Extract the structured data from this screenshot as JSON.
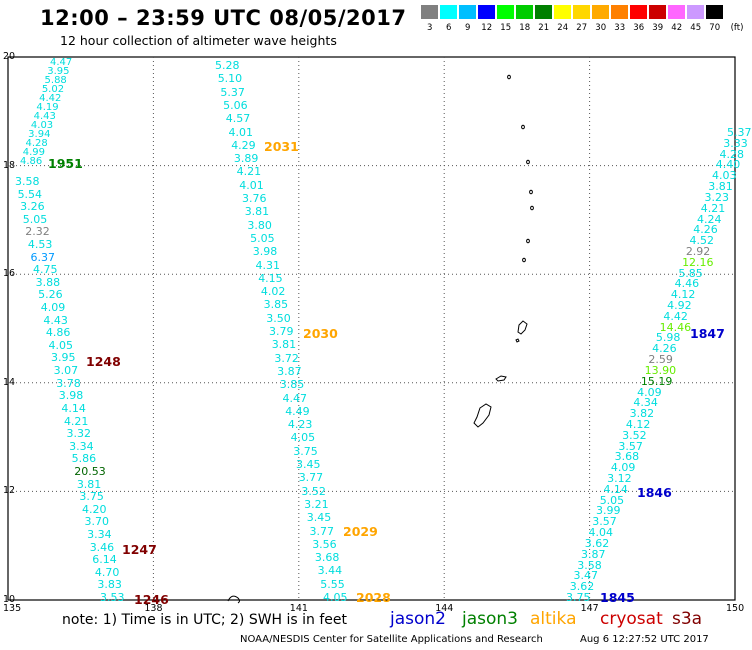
{
  "title": "12:00 – 23:59 UTC 08/05/2017",
  "subtitle": "12 hour collection of altimeter wave heights",
  "colorbar": {
    "unit": "(ft)",
    "labels": [
      "3",
      "6",
      "9",
      "12",
      "15",
      "18",
      "21",
      "24",
      "27",
      "30",
      "33",
      "36",
      "39",
      "42",
      "45",
      "70"
    ],
    "colors": [
      "#808080",
      "#00ffff",
      "#00bfff",
      "#0000ff",
      "#00ff00",
      "#00cc00",
      "#008000",
      "#ffff00",
      "#ffd700",
      "#ffaa00",
      "#ff8000",
      "#ff0000",
      "#cc0000",
      "#ff66ff",
      "#cc99ff",
      "#000000"
    ]
  },
  "axes": {
    "y_labels": [
      "20",
      "18",
      "16",
      "14",
      "12",
      "10"
    ],
    "x_labels": [
      "135",
      "138",
      "141",
      "144",
      "147",
      "150"
    ]
  },
  "track_labels": [
    {
      "text": "1951",
      "color": "#008000"
    },
    {
      "text": "1248",
      "color": "#800000"
    },
    {
      "text": "1247",
      "color": "#800000"
    },
    {
      "text": "1246",
      "color": "#800000"
    },
    {
      "text": "2031",
      "color": "#ffa500"
    },
    {
      "text": "2030",
      "color": "#ffa500"
    },
    {
      "text": "2029",
      "color": "#ffa500"
    },
    {
      "text": "2028",
      "color": "#ffa500"
    },
    {
      "text": "1847",
      "color": "#0000cc"
    },
    {
      "text": "1846",
      "color": "#0000cc"
    },
    {
      "text": "1845",
      "color": "#0000cc"
    }
  ],
  "tracks": {
    "t1_top": [
      "4.47",
      "3.95",
      "5.88",
      "5.02",
      "4.42",
      "4.19",
      "4.43",
      "4.03",
      "3.94",
      "4.28",
      "4.99",
      "4.86"
    ],
    "t1": [
      "3.58",
      "5.54",
      "3.26",
      "5.05",
      "2.32",
      "4.53",
      "6.37",
      "4.75",
      "3.88",
      "5.26",
      "4.09",
      "4.43",
      "4.86",
      "4.05",
      "3.95",
      "3.07",
      "3.78",
      "3.98",
      "4.14",
      "4.21",
      "3.32",
      "3.34",
      "5.86",
      "20.53",
      "3.81",
      "3.75",
      "4.20",
      "3.70",
      "3.34",
      "3.46",
      "6.14",
      "4.70",
      "3.83",
      "3.53"
    ],
    "t1_colors": {
      "2.32": "#808080",
      "6.37": "#0099ff",
      "20.53": "#006400"
    },
    "t2": [
      "5.28",
      "5.10",
      "5.37",
      "5.06",
      "4.57",
      "4.01",
      "4.29",
      "3.89",
      "4.21",
      "4.01",
      "3.76",
      "3.81",
      "3.80",
      "5.05",
      "3.98",
      "4.31",
      "4.15",
      "4.02",
      "3.85",
      "3.50",
      "3.79",
      "3.81",
      "3.72",
      "3.87",
      "3.85",
      "4.47",
      "4.49",
      "4.23",
      "4.05",
      "3.75",
      "3.45",
      "3.77",
      "3.52",
      "3.21",
      "3.45",
      "3.77",
      "3.56",
      "3.68",
      "3.44",
      "5.55",
      "4.05"
    ],
    "t3": [
      "5.37",
      "3.33",
      "4.28",
      "4.40",
      "4.03",
      "3.81",
      "3.23",
      "4.21",
      "4.24",
      "4.26",
      "4.52",
      "2.92",
      "12.16",
      "5.85",
      "4.46",
      "4.12",
      "4.92",
      "4.42",
      "14.46",
      "5.98",
      "4.26",
      "2.59",
      "13.90",
      "15.19",
      "4.09",
      "4.34",
      "3.82",
      "4.12",
      "3.52",
      "3.57",
      "3.68",
      "4.09",
      "3.12",
      "4.14",
      "5.05",
      "3.99",
      "3.57",
      "4.04",
      "3.62",
      "3.87",
      "3.58",
      "3.47",
      "3.62",
      "3.75"
    ],
    "t3_colors": {
      "2.92": "#808080",
      "12.16": "#66ee00",
      "14.46": "#66ee00",
      "2.59": "#808080",
      "13.90": "#66ee00",
      "15.19": "#008000"
    }
  },
  "note": "note:  1) Time is in UTC;  2) SWH is in feet",
  "satellites": [
    {
      "name": "jason2",
      "color": "#0000cc"
    },
    {
      "name": "jason3",
      "color": "#008000"
    },
    {
      "name": "altika",
      "color": "#ffa500"
    },
    {
      "name": "cryosat",
      "color": "#cc0000"
    },
    {
      "name": "s3a",
      "color": "#800000"
    }
  ],
  "credit": "NOAA/NESDIS Center for Satellite Applications and Research",
  "timestamp": "Aug  6 12:27:52 UTC 2017"
}
